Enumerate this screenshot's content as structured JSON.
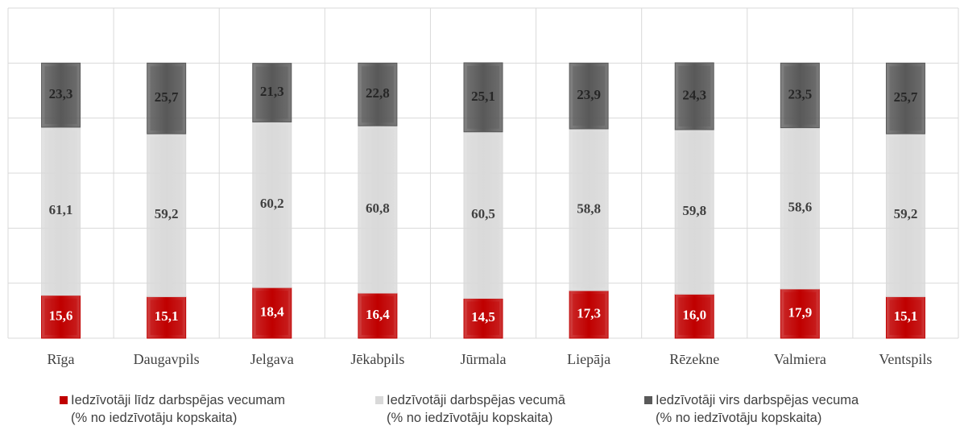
{
  "chart_data": {
    "type": "stacked_bar",
    "categories": [
      "Rīga",
      "Daugavpils",
      "Jelgava",
      "Jēkabpils",
      "Jūrmala",
      "Liepāja",
      "Rēzekne",
      "Valmiera",
      "Ventspils"
    ],
    "series": [
      {
        "name": "Iedzīvotāji līdz darbspējas vecumam\n(% no iedzīvotāju kopskaita)",
        "color": "#c00000",
        "label_color": "#ffffff",
        "values": [
          15.6,
          15.1,
          18.4,
          16.4,
          14.5,
          17.3,
          16.0,
          17.9,
          15.1
        ],
        "value_labels": [
          "15,6",
          "15,1",
          "18,4",
          "16,4",
          "14,5",
          "17,3",
          "16,0",
          "17,9",
          "15,1"
        ]
      },
      {
        "name": "Iedzīvotāji darbspējas vecumā\n(% no iedzīvotāju kopskaita)",
        "color": "#d9d9d9",
        "label_color": "#404040",
        "values": [
          61.1,
          59.2,
          60.2,
          60.8,
          60.5,
          58.8,
          59.8,
          58.6,
          59.2
        ],
        "value_labels": [
          "61,1",
          "59,2",
          "60,2",
          "60,8",
          "60,5",
          "58,8",
          "59,8",
          "58,6",
          "59,2"
        ]
      },
      {
        "name": "Iedzīvotāji virs darbspējas vecuma\n(% no iedzīvotāju kopskaita)",
        "color": "#595959",
        "label_color": "#262626",
        "values": [
          23.3,
          25.7,
          21.3,
          22.8,
          25.1,
          23.9,
          24.3,
          23.5,
          25.7
        ],
        "value_labels": [
          "23,3",
          "25,7",
          "21,3",
          "22,8",
          "25,1",
          "23,9",
          "24,3",
          "23,5",
          "25,7"
        ]
      }
    ],
    "ylim": [
      0,
      120
    ],
    "yticks": [
      0,
      20,
      40,
      60,
      80,
      100,
      120
    ],
    "grid": true
  }
}
